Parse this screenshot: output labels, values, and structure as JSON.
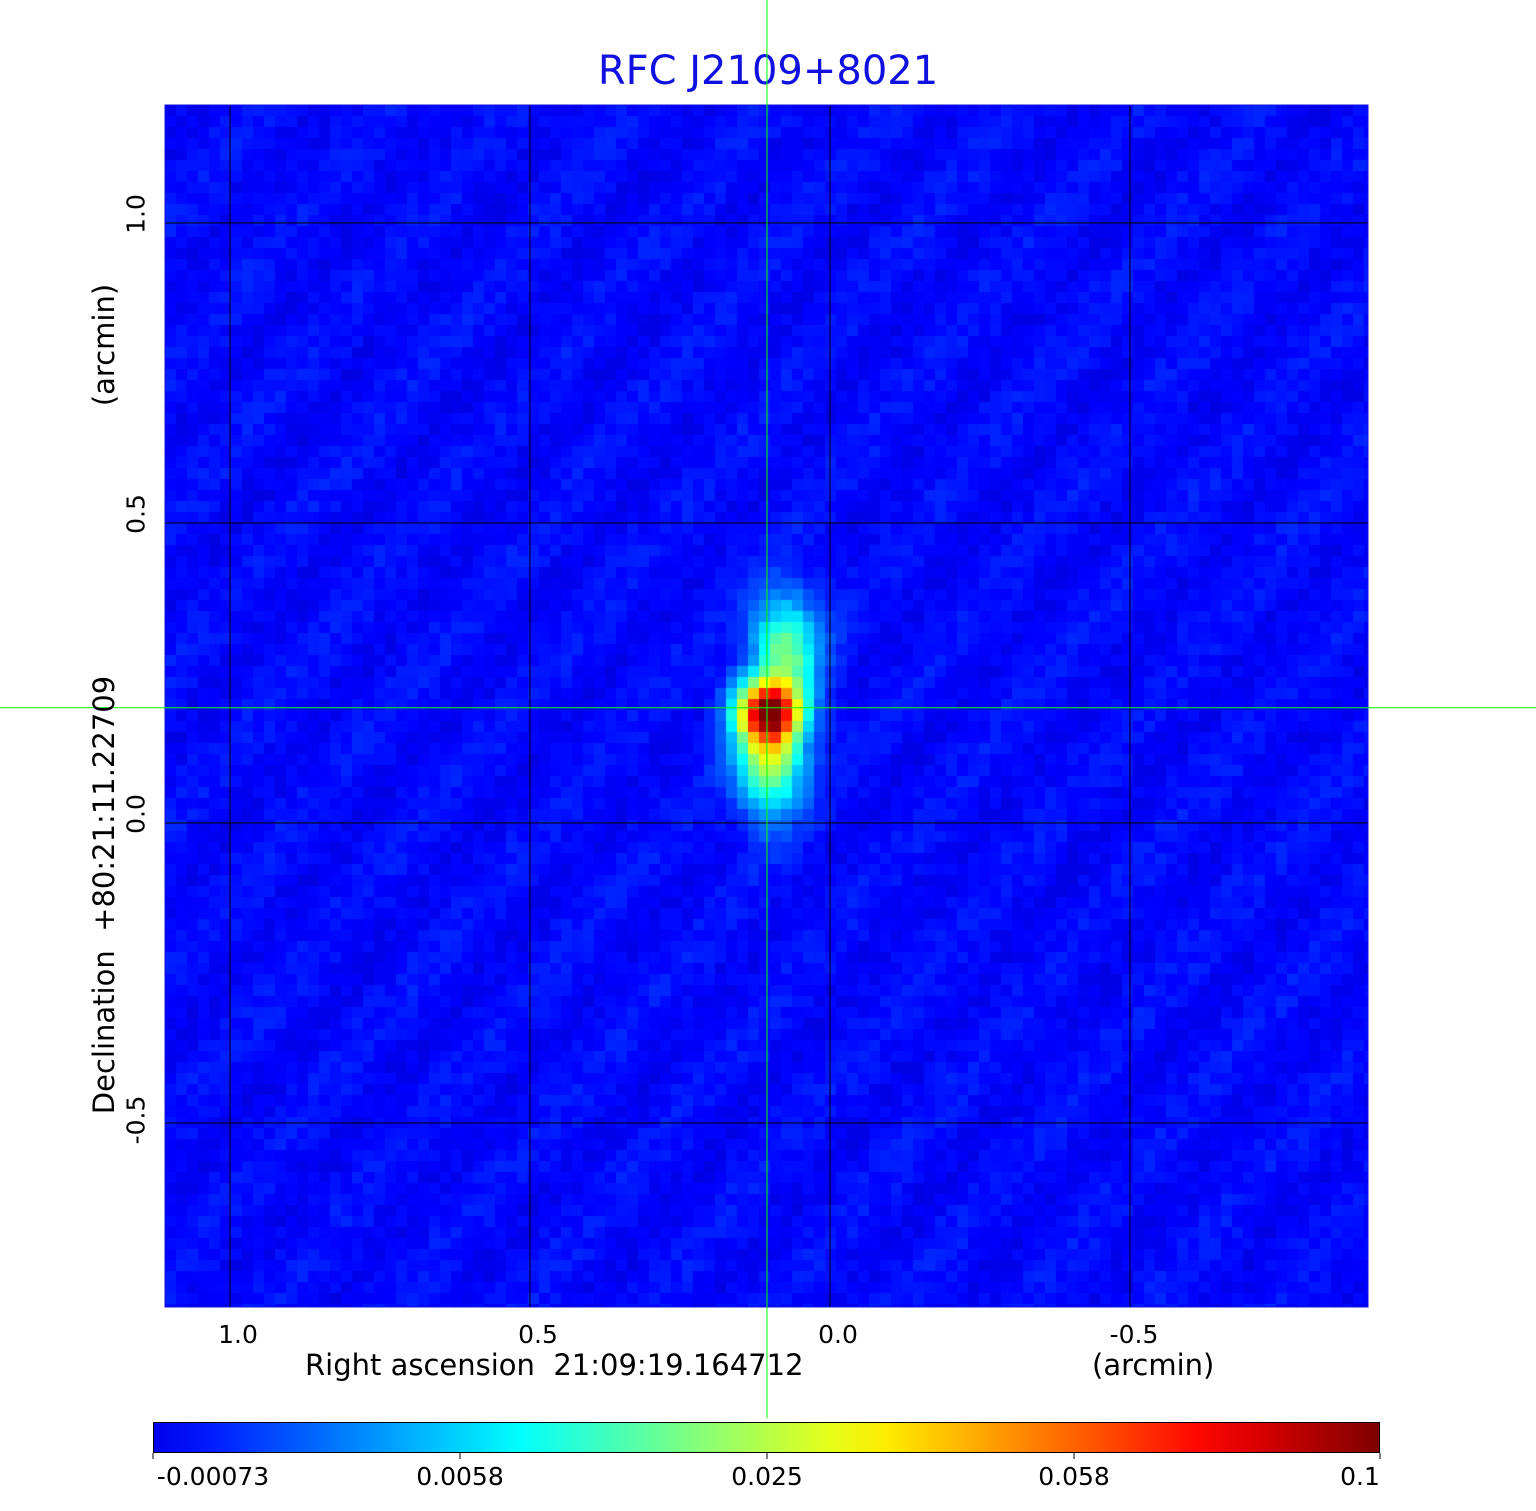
{
  "chart_data": {
    "type": "heatmap",
    "title": "RFC J2109+8021",
    "xlabel": "Right ascension  21:09:19.164712",
    "xunit": "(arcmin)",
    "ylabel": "Declination  +80:21:11.22709",
    "yunit": "(arcmin)",
    "xlim": [
      1.11,
      -0.9
    ],
    "ylim": [
      -0.81,
      1.2
    ],
    "x_ticks": [
      "1.0",
      "0.5",
      "0.0",
      "-0.5"
    ],
    "x_tick_values": [
      1.0,
      0.5,
      0.0,
      -0.5
    ],
    "y_ticks": [
      "1.0",
      "0.5",
      "0.0",
      "-0.5"
    ],
    "y_tick_values": [
      1.0,
      0.5,
      0.0,
      -0.5
    ],
    "grid": true,
    "grid_color": "#000000",
    "crosshair": {
      "x": 0.105,
      "y": 0.192,
      "color": "#00ff00"
    },
    "colormap": "jet",
    "colorbar": {
      "location": "bottom",
      "ticks": [
        "-0.00073",
        "0.0058",
        "0.025",
        "0.058",
        "0.1"
      ],
      "range": [
        -0.00073,
        0.1
      ]
    },
    "components": [
      {
        "x": 0.1,
        "y": 0.185,
        "peak": 0.1
      },
      {
        "x": 0.1,
        "y": 0.12,
        "peak": 0.03
      },
      {
        "x": 0.075,
        "y": 0.28,
        "peak": 0.018
      }
    ],
    "background_level": 0.0
  }
}
